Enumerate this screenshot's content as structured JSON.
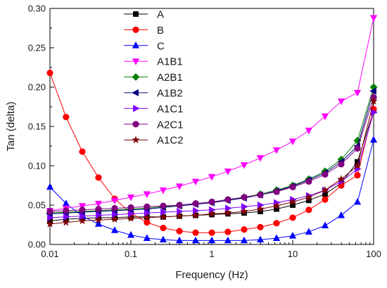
{
  "chart_data": {
    "type": "line",
    "xlabel": "Frequency (Hz)",
    "ylabel": "Tan (delta)",
    "xscale": "log",
    "xlim": [
      0.01,
      100
    ],
    "ylim": [
      0,
      0.3
    ],
    "x_ticks": [
      {
        "value": 0.01,
        "label": "0.01"
      },
      {
        "value": 0.1,
        "label": "0.1"
      },
      {
        "value": 1,
        "label": "1"
      },
      {
        "value": 10,
        "label": "10"
      },
      {
        "value": 100,
        "label": "100"
      }
    ],
    "y_ticks": [
      {
        "value": 0,
        "label": "0.00"
      },
      {
        "value": 0.05,
        "label": "0.05"
      },
      {
        "value": 0.1,
        "label": "0.10"
      },
      {
        "value": 0.15,
        "label": "0.15"
      },
      {
        "value": 0.2,
        "label": "0.20"
      },
      {
        "value": 0.25,
        "label": "0.25"
      },
      {
        "value": 0.3,
        "label": "0.30"
      }
    ],
    "grid": false,
    "legend_position": "top-center",
    "x": [
      0.01,
      0.0158,
      0.0251,
      0.0398,
      0.0631,
      0.1,
      0.158,
      0.251,
      0.398,
      0.631,
      1,
      1.58,
      2.51,
      3.98,
      6.31,
      10,
      15.8,
      25.1,
      39.8,
      63.1,
      100
    ],
    "series": [
      {
        "name": "A",
        "color": "#000000",
        "marker": "square",
        "values": [
          0.03,
          0.032,
          0.033,
          0.034,
          0.034,
          0.035,
          0.035,
          0.035,
          0.036,
          0.037,
          0.038,
          0.039,
          0.04,
          0.042,
          0.045,
          0.05,
          0.056,
          0.064,
          0.078,
          0.105,
          0.17
        ]
      },
      {
        "name": "B",
        "color": "#ff0000",
        "marker": "circle",
        "values": [
          0.218,
          0.162,
          0.118,
          0.085,
          0.058,
          0.04,
          0.028,
          0.021,
          0.017,
          0.015,
          0.015,
          0.016,
          0.019,
          0.022,
          0.027,
          0.034,
          0.044,
          0.057,
          0.075,
          0.088,
          0.172
        ]
      },
      {
        "name": "C",
        "color": "#0000ff",
        "marker": "triangle-up",
        "values": [
          0.073,
          0.052,
          0.036,
          0.026,
          0.018,
          0.012,
          0.008,
          0.006,
          0.005,
          0.005,
          0.005,
          0.005,
          0.005,
          0.006,
          0.008,
          0.011,
          0.016,
          0.024,
          0.037,
          0.054,
          0.133
        ]
      },
      {
        "name": "A1B1",
        "color": "#ff00ff",
        "marker": "triangle-down",
        "values": [
          0.043,
          0.046,
          0.049,
          0.052,
          0.056,
          0.06,
          0.064,
          0.069,
          0.074,
          0.08,
          0.086,
          0.093,
          0.101,
          0.11,
          0.12,
          0.131,
          0.145,
          0.163,
          0.182,
          0.193,
          0.288
        ]
      },
      {
        "name": "A2B1",
        "color": "#008000",
        "marker": "diamond",
        "values": [
          0.04,
          0.041,
          0.042,
          0.043,
          0.044,
          0.045,
          0.046,
          0.048,
          0.05,
          0.052,
          0.054,
          0.057,
          0.06,
          0.064,
          0.069,
          0.075,
          0.083,
          0.093,
          0.108,
          0.132,
          0.2
        ]
      },
      {
        "name": "A1B2",
        "color": "#000080",
        "marker": "triangle-left",
        "values": [
          0.039,
          0.04,
          0.041,
          0.042,
          0.043,
          0.044,
          0.045,
          0.047,
          0.049,
          0.051,
          0.053,
          0.056,
          0.059,
          0.063,
          0.068,
          0.074,
          0.082,
          0.091,
          0.105,
          0.125,
          0.195
        ]
      },
      {
        "name": "A1C1",
        "color": "#8000ff",
        "marker": "triangle-right",
        "values": [
          0.034,
          0.035,
          0.036,
          0.037,
          0.038,
          0.039,
          0.04,
          0.041,
          0.042,
          0.043,
          0.044,
          0.046,
          0.048,
          0.05,
          0.053,
          0.057,
          0.062,
          0.069,
          0.08,
          0.096,
          0.168
        ]
      },
      {
        "name": "A2C1",
        "color": "#800080",
        "marker": "circle",
        "values": [
          0.042,
          0.043,
          0.044,
          0.045,
          0.046,
          0.047,
          0.048,
          0.049,
          0.05,
          0.052,
          0.054,
          0.057,
          0.06,
          0.063,
          0.067,
          0.073,
          0.08,
          0.089,
          0.102,
          0.122,
          0.187
        ]
      },
      {
        "name": "A1C2",
        "color": "#800000",
        "marker": "star",
        "values": [
          0.026,
          0.028,
          0.03,
          0.031,
          0.032,
          0.033,
          0.034,
          0.035,
          0.036,
          0.037,
          0.039,
          0.04,
          0.042,
          0.045,
          0.049,
          0.054,
          0.06,
          0.069,
          0.083,
          0.1,
          0.182
        ]
      }
    ]
  }
}
